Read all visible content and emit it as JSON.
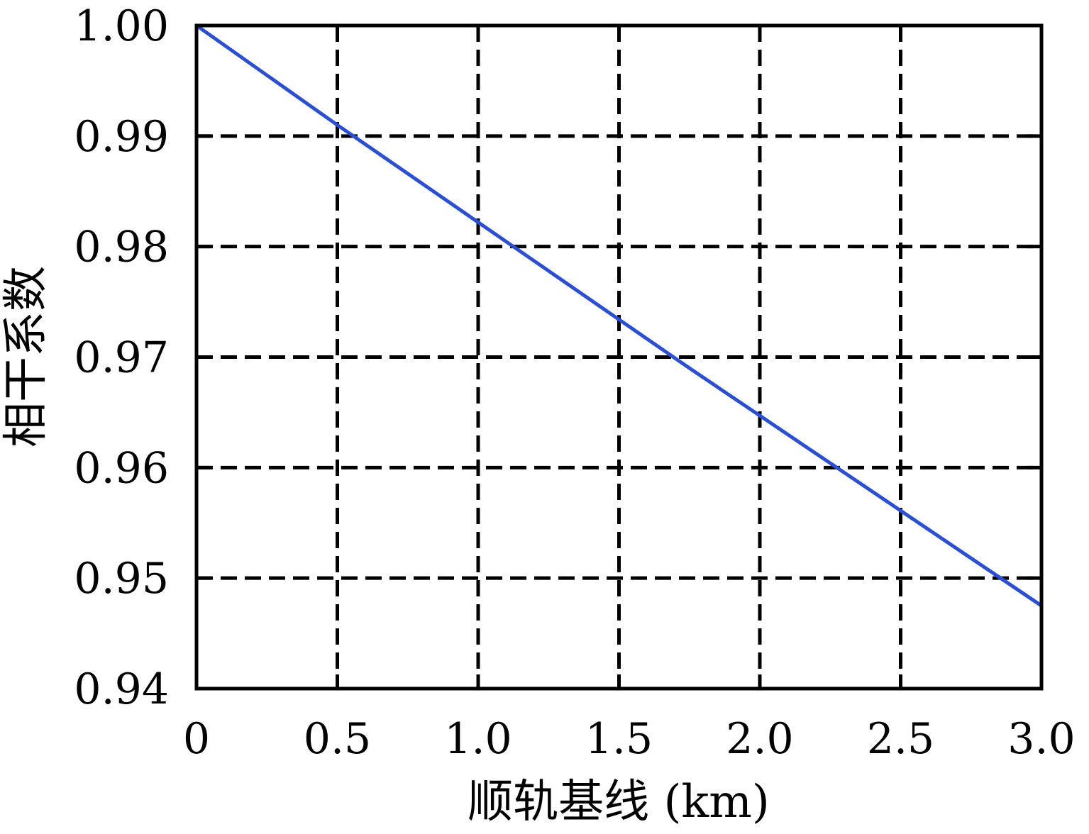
{
  "figure": {
    "background": "#ffffff",
    "frame_color": "#000000",
    "grid_color": "#000000",
    "grid_dash": "23 11",
    "tick_length": 20
  },
  "chart_data": {
    "type": "line",
    "title": "",
    "xlabel": "顺轨基线 (km)",
    "ylabel": "相干系数",
    "xlim": [
      0,
      3
    ],
    "ylim": [
      0.94,
      1.0
    ],
    "xticks": [
      0,
      0.5,
      1.0,
      1.5,
      2.0,
      2.5,
      3.0
    ],
    "xtick_labels": [
      "0",
      "0.5",
      "1.0",
      "1.5",
      "2.0",
      "2.5",
      "3.0"
    ],
    "yticks": [
      0.94,
      0.95,
      0.96,
      0.97,
      0.98,
      0.99,
      1.0
    ],
    "ytick_labels": [
      "0.94",
      "0.95",
      "0.96",
      "0.97",
      "0.98",
      "0.99",
      "1.00"
    ],
    "grid": "dashed",
    "legend": "none",
    "series": [
      {
        "color": "#2a4fd2",
        "line_width": 5,
        "x": [
          0,
          0.25,
          0.5,
          0.75,
          1.0,
          1.25,
          1.5,
          1.75,
          2.0,
          2.25,
          2.5,
          2.75,
          3.0
        ],
        "y": [
          1.0,
          0.9955,
          0.991,
          0.9866,
          0.9822,
          0.9778,
          0.9734,
          0.969,
          0.9647,
          0.9604,
          0.9561,
          0.9518,
          0.9475
        ]
      }
    ]
  }
}
